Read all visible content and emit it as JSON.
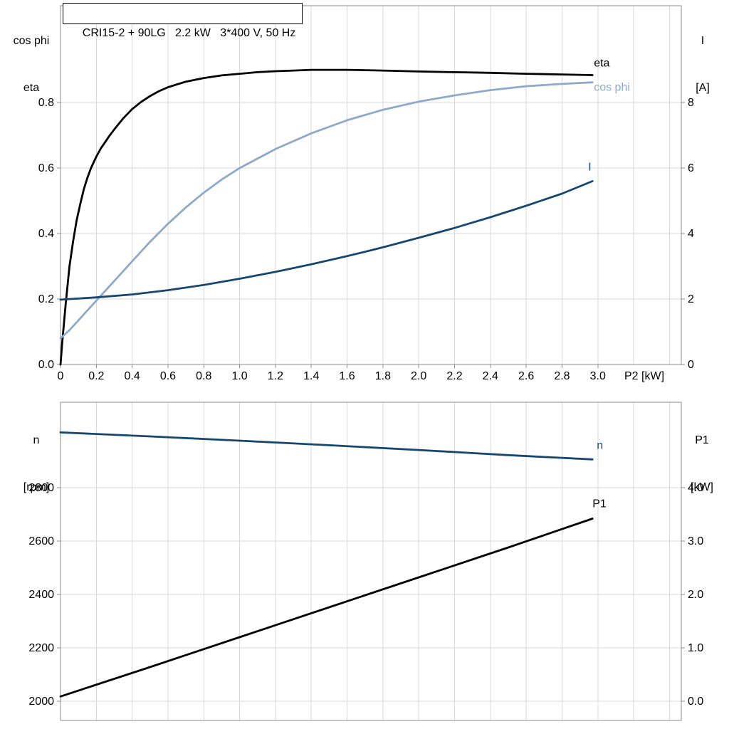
{
  "title_box": {
    "text": "CRI15-2 + 90LG   2.2 kW   3*400 V, 50 Hz"
  },
  "colors": {
    "black": "#000000",
    "dark_blue": "#17476f",
    "light_blue": "#8fa9c8",
    "grid": "#d8d8d8",
    "axis": "#8c8c8c",
    "text": "#000000",
    "background": "#ffffff"
  },
  "chart_data": [
    {
      "id": "top",
      "type": "line",
      "x_axis": {
        "label": "P2 [kW]",
        "min": 0,
        "max": 3.466,
        "tick_step": 0.2,
        "grid_max": 3.4,
        "ticks": [
          0,
          0.2,
          0.4,
          0.6,
          0.8,
          1.0,
          1.2,
          1.4,
          1.6,
          1.8,
          2.0,
          2.2,
          2.4,
          2.6,
          2.8,
          3.0
        ],
        "tick_labels": [
          "0",
          "0.2",
          "0.4",
          "0.6",
          "0.8",
          "1.0",
          "1.2",
          "1.4",
          "1.6",
          "1.8",
          "2.0",
          "2.2",
          "2.4",
          "2.6",
          "2.8",
          "3.0"
        ]
      },
      "left_axis": {
        "title_lines": [
          "cos phi",
          "eta"
        ],
        "min": 0,
        "max": 1.096,
        "ticks": [
          0.0,
          0.2,
          0.4,
          0.6,
          0.8
        ],
        "tick_labels": [
          "0.0",
          "0.2",
          "0.4",
          "0.6",
          "0.8"
        ],
        "grid_ticks": [
          0.2,
          0.4,
          0.6,
          0.8
        ]
      },
      "right_axis": {
        "title_lines": [
          "I",
          "[A]"
        ],
        "min": 0,
        "max": 10.96,
        "ticks": [
          0,
          2,
          4,
          6,
          8
        ],
        "tick_labels": [
          "0",
          "2",
          "4",
          "6",
          "8"
        ],
        "grid_ticks": []
      },
      "series": [
        {
          "sid": "eta",
          "axis": "left",
          "color_key": "black",
          "width": 2.8,
          "x": [
            0,
            0.01,
            0.03,
            0.05,
            0.07,
            0.09,
            0.11,
            0.13,
            0.15,
            0.17,
            0.2,
            0.225,
            0.25,
            0.275,
            0.3,
            0.35,
            0.4,
            0.45,
            0.5,
            0.55,
            0.6,
            0.7,
            0.8,
            0.9,
            1.0,
            1.1,
            1.2,
            1.3,
            1.4,
            1.5,
            1.6,
            1.8,
            2.0,
            2.2,
            2.4,
            2.6,
            2.8,
            2.97
          ],
          "y": [
            0,
            0.07,
            0.19,
            0.3,
            0.375,
            0.44,
            0.49,
            0.535,
            0.57,
            0.6,
            0.635,
            0.66,
            0.68,
            0.7,
            0.718,
            0.752,
            0.78,
            0.802,
            0.82,
            0.835,
            0.847,
            0.864,
            0.875,
            0.883,
            0.888,
            0.893,
            0.896,
            0.898,
            0.9,
            0.9,
            0.9,
            0.898,
            0.895,
            0.893,
            0.891,
            0.888,
            0.886,
            0.884
          ],
          "end_label": {
            "text": "eta",
            "dx": 2,
            "dy": -12
          }
        },
        {
          "sid": "cos-phi",
          "axis": "left",
          "color_key": "light_blue",
          "width": 2.8,
          "x": [
            0,
            0.05,
            0.1,
            0.15,
            0.2,
            0.3,
            0.4,
            0.5,
            0.6,
            0.7,
            0.8,
            0.9,
            1.0,
            1.2,
            1.4,
            1.6,
            1.8,
            2.0,
            2.2,
            2.4,
            2.6,
            2.8,
            2.97
          ],
          "y": [
            0.08,
            0.105,
            0.135,
            0.165,
            0.195,
            0.255,
            0.315,
            0.375,
            0.43,
            0.48,
            0.525,
            0.565,
            0.6,
            0.658,
            0.706,
            0.746,
            0.778,
            0.803,
            0.822,
            0.838,
            0.85,
            0.857,
            0.862
          ],
          "end_label": {
            "text": "cos phi",
            "dx": 2,
            "dy": 12
          }
        },
        {
          "sid": "current",
          "axis": "right",
          "color_key": "dark_blue",
          "width": 2.8,
          "x": [
            0,
            0.2,
            0.4,
            0.6,
            0.8,
            1.0,
            1.2,
            1.4,
            1.6,
            1.8,
            2.0,
            2.2,
            2.4,
            2.6,
            2.8,
            2.97
          ],
          "y": [
            1.98,
            2.05,
            2.14,
            2.27,
            2.43,
            2.62,
            2.83,
            3.06,
            3.31,
            3.58,
            3.87,
            4.17,
            4.5,
            4.85,
            5.22,
            5.6
          ],
          "end_label": {
            "text": "I",
            "dx": -6,
            "dy": -15
          }
        }
      ]
    },
    {
      "id": "bottom",
      "type": "line",
      "x_axis": {
        "label": "",
        "min": 0,
        "max": 3.466,
        "tick_step": 0.2,
        "grid_max": 3.4,
        "ticks": [],
        "tick_labels": []
      },
      "left_axis": {
        "title_lines": [
          "n",
          "[rpm]"
        ],
        "min": 1928,
        "max": 3120,
        "ticks": [
          2000,
          2200,
          2400,
          2600,
          2800
        ],
        "tick_labels": [
          "2000",
          "2200",
          "2400",
          "2600",
          "2800"
        ],
        "grid_ticks": [
          2000,
          2200,
          2400,
          2600,
          2800
        ]
      },
      "right_axis": {
        "title_lines": [
          "P1",
          "[kW]"
        ],
        "min": -0.36,
        "max": 5.6,
        "ticks": [
          0,
          1,
          2,
          3,
          4
        ],
        "tick_labels": [
          "0.0",
          "1.0",
          "2.0",
          "3.0",
          "4.0"
        ],
        "grid_ticks": []
      },
      "series": [
        {
          "sid": "speed",
          "axis": "left",
          "color_key": "dark_blue",
          "width": 2.8,
          "x": [
            0,
            0.5,
            1.0,
            1.5,
            2.0,
            2.5,
            2.97
          ],
          "y": [
            3007,
            2992,
            2976,
            2959,
            2941,
            2922,
            2906
          ],
          "end_label": {
            "text": "n",
            "dx": 6,
            "dy": -15
          }
        },
        {
          "sid": "p1",
          "axis": "right",
          "color_key": "black",
          "width": 2.8,
          "x": [
            0,
            0.5,
            1.0,
            1.5,
            2.0,
            2.5,
            2.97
          ],
          "y": [
            0.09,
            0.64,
            1.2,
            1.76,
            2.32,
            2.88,
            3.42
          ],
          "end_label": {
            "text": "P1",
            "dx": 0,
            "dy": -16
          }
        }
      ]
    }
  ]
}
